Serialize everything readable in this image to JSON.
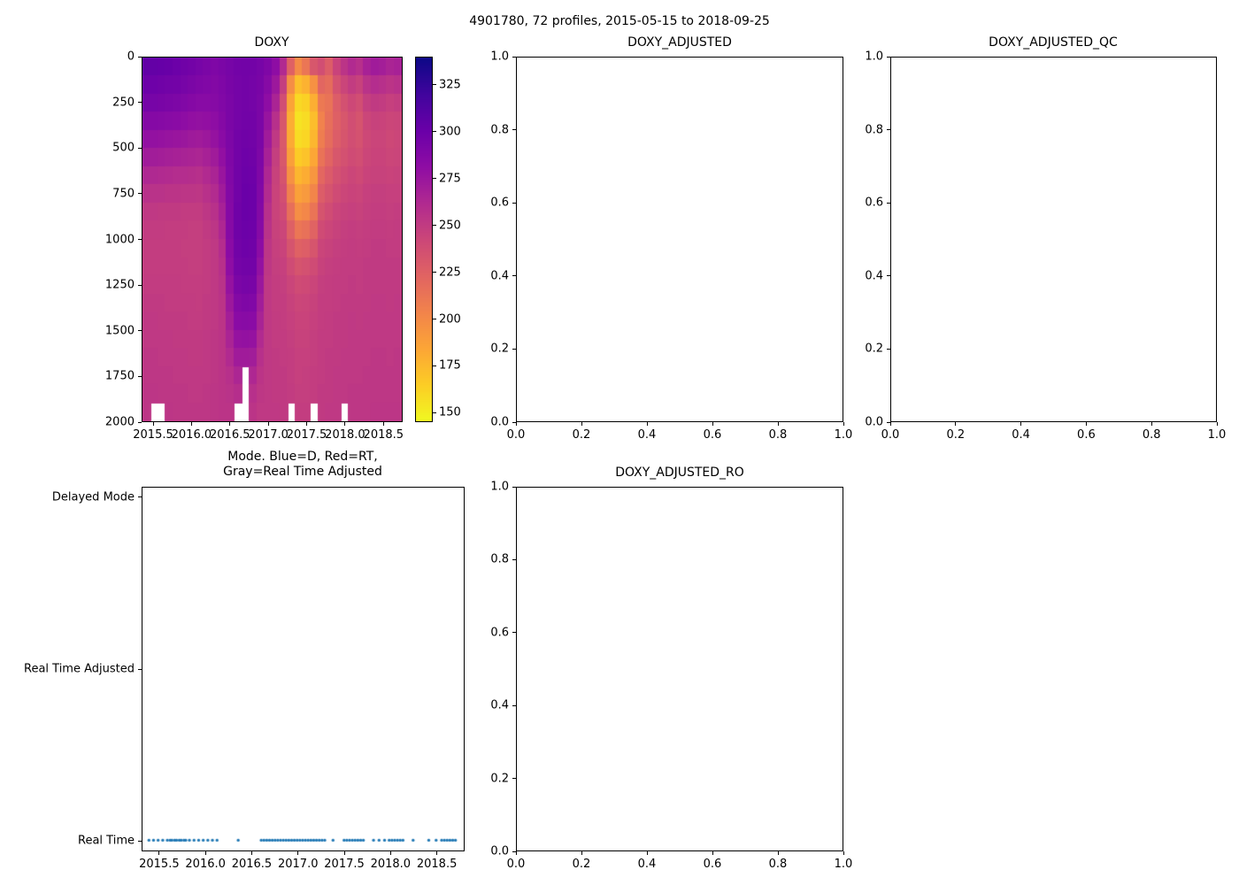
{
  "figure": {
    "suptitle": "4901780, 72 profiles, 2015-05-15 to 2018-09-25",
    "background": "#ffffff"
  },
  "chart_data": [
    {
      "id": "doxy",
      "type": "heatmap",
      "title": "DOXY",
      "x_range": [
        2015.35,
        2018.75
      ],
      "y_range_depth": [
        0,
        2000
      ],
      "x_ticks": [
        2015.5,
        2016.0,
        2016.5,
        2017.0,
        2017.5,
        2018.0,
        2018.5
      ],
      "x_tick_labels": [
        "2015.5",
        "2016.0",
        "2016.5",
        "2017.0",
        "2017.5",
        "2018.0",
        "2018.5"
      ],
      "y_ticks": [
        0,
        250,
        500,
        750,
        1000,
        1250,
        1500,
        1750,
        2000
      ],
      "y_tick_labels": [
        "0",
        "250",
        "500",
        "750",
        "1000",
        "1250",
        "1500",
        "1750",
        "2000"
      ],
      "colorbar": {
        "vmin": 145,
        "vmax": 340,
        "ticks": [
          150,
          175,
          200,
          225,
          250,
          275,
          300,
          325
        ],
        "tick_labels": [
          "150",
          "175",
          "200",
          "225",
          "250",
          "275",
          "300",
          "325"
        ],
        "colormap": "plasma_reversed",
        "stops": [
          [
            0.0,
            "#0d0887"
          ],
          [
            0.1,
            "#41049d"
          ],
          [
            0.2,
            "#6a00a8"
          ],
          [
            0.3,
            "#8f0da4"
          ],
          [
            0.4,
            "#b12a90"
          ],
          [
            0.5,
            "#cc4778"
          ],
          [
            0.6,
            "#e16462"
          ],
          [
            0.7,
            "#f2844b"
          ],
          [
            0.8,
            "#fca636"
          ],
          [
            0.9,
            "#fcce25"
          ],
          [
            1.0,
            "#f0f921"
          ]
        ]
      },
      "grid": {
        "time_start": 2015.35,
        "time_step": 0.1,
        "depth_start": 0,
        "depth_step": 100,
        "note": "values[time_column][depth_row], oxygen umol/kg, null = missing (white)",
        "values": [
          [
            305,
            300,
            295,
            288,
            280,
            272,
            264,
            257,
            252,
            250,
            249,
            249,
            250,
            251,
            252,
            252,
            253,
            253,
            254,
            254
          ],
          [
            304,
            299,
            294,
            287,
            279,
            271,
            263,
            256,
            252,
            250,
            249,
            249,
            250,
            251,
            252,
            252,
            253,
            253,
            254,
            null
          ],
          [
            303,
            298,
            293,
            286,
            278,
            270,
            262,
            256,
            251,
            250,
            249,
            249,
            250,
            251,
            251,
            252,
            252,
            253,
            253,
            null
          ],
          [
            302,
            297,
            292,
            285,
            277,
            269,
            261,
            255,
            251,
            249,
            249,
            249,
            250,
            250,
            251,
            252,
            252,
            253,
            253,
            254
          ],
          [
            300,
            296,
            291,
            284,
            276,
            268,
            260,
            255,
            251,
            249,
            249,
            249,
            250,
            250,
            251,
            251,
            252,
            252,
            253,
            253
          ],
          [
            298,
            294,
            289,
            282,
            275,
            267,
            260,
            254,
            250,
            249,
            248,
            249,
            249,
            250,
            251,
            251,
            252,
            252,
            253,
            253
          ],
          [
            296,
            292,
            287,
            280,
            273,
            266,
            259,
            254,
            250,
            248,
            248,
            248,
            249,
            250,
            250,
            251,
            251,
            252,
            252,
            253
          ],
          [
            294,
            290,
            285,
            279,
            272,
            265,
            258,
            253,
            250,
            248,
            248,
            248,
            249,
            249,
            250,
            251,
            251,
            252,
            252,
            253
          ],
          [
            292,
            289,
            285,
            280,
            274,
            268,
            262,
            257,
            253,
            251,
            250,
            250,
            250,
            251,
            251,
            252,
            252,
            252,
            253,
            253
          ],
          [
            290,
            288,
            286,
            282,
            278,
            272,
            266,
            261,
            257,
            254,
            252,
            252,
            252,
            252,
            252,
            253,
            253,
            253,
            254,
            254
          ],
          [
            292,
            290,
            289,
            287,
            284,
            280,
            276,
            272,
            268,
            264,
            260,
            258,
            256,
            255,
            255,
            255,
            255,
            255,
            255,
            255
          ],
          [
            294,
            293,
            292,
            292,
            291,
            290,
            289,
            288,
            287,
            286,
            284,
            282,
            278,
            274,
            270,
            266,
            262,
            258,
            256,
            255
          ],
          [
            296,
            295,
            295,
            295,
            296,
            296,
            297,
            297,
            298,
            298,
            297,
            295,
            292,
            288,
            284,
            278,
            272,
            265,
            259,
            null
          ],
          [
            297,
            296,
            296,
            297,
            298,
            299,
            300,
            301,
            301,
            300,
            299,
            297,
            294,
            290,
            285,
            279,
            272,
            null,
            null,
            null
          ],
          [
            296,
            295,
            295,
            296,
            297,
            298,
            299,
            300,
            300,
            299,
            298,
            296,
            293,
            289,
            284,
            278,
            271,
            264,
            258,
            255
          ],
          [
            294,
            293,
            292,
            292,
            292,
            291,
            290,
            289,
            288,
            286,
            283,
            279,
            275,
            271,
            267,
            262,
            258,
            255,
            253,
            252
          ],
          [
            290,
            286,
            282,
            277,
            272,
            268,
            264,
            261,
            258,
            256,
            254,
            253,
            252,
            252,
            252,
            252,
            252,
            252,
            252,
            252
          ],
          [
            282,
            274,
            266,
            258,
            252,
            248,
            246,
            245,
            245,
            246,
            247,
            248,
            249,
            249,
            250,
            250,
            251,
            251,
            251,
            252
          ],
          [
            262,
            248,
            238,
            232,
            230,
            231,
            234,
            237,
            240,
            243,
            245,
            247,
            248,
            249,
            249,
            250,
            250,
            251,
            251,
            251
          ],
          [
            225,
            198,
            185,
            180,
            182,
            188,
            196,
            206,
            216,
            226,
            234,
            240,
            244,
            246,
            247,
            248,
            249,
            249,
            250,
            null
          ],
          [
            200,
            172,
            160,
            155,
            158,
            166,
            176,
            187,
            198,
            212,
            225,
            234,
            240,
            243,
            245,
            246,
            247,
            247,
            248,
            249
          ],
          [
            212,
            178,
            163,
            158,
            161,
            170,
            181,
            191,
            202,
            215,
            227,
            236,
            241,
            244,
            245,
            246,
            247,
            248,
            248,
            249
          ],
          [
            232,
            196,
            180,
            173,
            176,
            184,
            193,
            203,
            213,
            224,
            233,
            240,
            244,
            246,
            247,
            248,
            248,
            249,
            249,
            null
          ],
          [
            238,
            222,
            210,
            205,
            208,
            214,
            221,
            228,
            234,
            240,
            244,
            246,
            248,
            249,
            249,
            250,
            250,
            250,
            251,
            251
          ],
          [
            228,
            218,
            214,
            216,
            218,
            223,
            229,
            234,
            239,
            243,
            246,
            248,
            249,
            249,
            250,
            250,
            251,
            251,
            251,
            252
          ],
          [
            245,
            235,
            228,
            226,
            228,
            232,
            236,
            240,
            244,
            246,
            248,
            249,
            250,
            250,
            251,
            251,
            251,
            252,
            252,
            252
          ],
          [
            255,
            244,
            236,
            232,
            233,
            236,
            240,
            243,
            246,
            248,
            249,
            250,
            250,
            251,
            251,
            251,
            252,
            252,
            252,
            null
          ],
          [
            262,
            250,
            242,
            238,
            238,
            240,
            243,
            245,
            247,
            249,
            250,
            250,
            251,
            251,
            252,
            252,
            252,
            252,
            253,
            253
          ],
          [
            258,
            246,
            238,
            234,
            235,
            238,
            241,
            244,
            246,
            248,
            249,
            250,
            250,
            251,
            251,
            252,
            252,
            252,
            253,
            253
          ],
          [
            268,
            256,
            248,
            243,
            242,
            243,
            245,
            247,
            248,
            249,
            250,
            251,
            251,
            251,
            252,
            252,
            252,
            253,
            253,
            253
          ],
          [
            272,
            260,
            251,
            246,
            244,
            245,
            246,
            248,
            249,
            250,
            251,
            251,
            251,
            252,
            252,
            252,
            253,
            253,
            253,
            254
          ],
          [
            270,
            258,
            250,
            245,
            244,
            245,
            246,
            248,
            249,
            250,
            251,
            251,
            251,
            252,
            252,
            252,
            253,
            253,
            253,
            254
          ],
          [
            266,
            255,
            247,
            243,
            242,
            243,
            245,
            247,
            248,
            249,
            250,
            251,
            251,
            251,
            252,
            252,
            252,
            253,
            253,
            254
          ],
          [
            268,
            257,
            249,
            244,
            243,
            244,
            246,
            247,
            249,
            250,
            250,
            251,
            251,
            252,
            252,
            252,
            253,
            253,
            253,
            254
          ]
        ]
      }
    },
    {
      "id": "doxy_adjusted",
      "type": "empty",
      "title": "DOXY_ADJUSTED",
      "x_range": [
        0,
        1
      ],
      "y_range": [
        0,
        1
      ],
      "x_ticks": [
        0,
        0.2,
        0.4,
        0.6,
        0.8,
        1.0
      ],
      "x_tick_labels": [
        "0.0",
        "0.2",
        "0.4",
        "0.6",
        "0.8",
        "1.0"
      ],
      "y_ticks": [
        0,
        0.2,
        0.4,
        0.6,
        0.8,
        1.0
      ],
      "y_tick_labels": [
        "0.0",
        "0.2",
        "0.4",
        "0.6",
        "0.8",
        "1.0"
      ]
    },
    {
      "id": "doxy_adjusted_qc",
      "type": "empty",
      "title": "DOXY_ADJUSTED_QC",
      "x_range": [
        0,
        1
      ],
      "y_range": [
        0,
        1
      ],
      "x_ticks": [
        0,
        0.2,
        0.4,
        0.6,
        0.8,
        1.0
      ],
      "x_tick_labels": [
        "0.0",
        "0.2",
        "0.4",
        "0.6",
        "0.8",
        "1.0"
      ],
      "y_ticks": [
        0,
        0.2,
        0.4,
        0.6,
        0.8,
        1.0
      ],
      "y_tick_labels": [
        "0.0",
        "0.2",
        "0.4",
        "0.6",
        "0.8",
        "1.0"
      ]
    },
    {
      "id": "mode",
      "type": "scatter",
      "title": "Mode. Blue=D, Red=RT,\nGray=Real Time Adjusted",
      "x_range": [
        2015.31,
        2018.8
      ],
      "x_ticks": [
        2015.5,
        2016.0,
        2016.5,
        2017.0,
        2017.5,
        2018.0,
        2018.5
      ],
      "x_tick_labels": [
        "2015.5",
        "2016.0",
        "2016.5",
        "2017.0",
        "2017.5",
        "2018.0",
        "2018.5"
      ],
      "y_categories": [
        "Real Time",
        "Real Time Adjusted",
        "Delayed Mode"
      ],
      "marker_color": "#1f77b4",
      "points": {
        "y_category": "Real Time",
        "x": [
          2015.38,
          2015.43,
          2015.48,
          2015.53,
          2015.58,
          2015.61,
          2015.63,
          2015.66,
          2015.68,
          2015.71,
          2015.73,
          2015.76,
          2015.78,
          2015.82,
          2015.87,
          2015.92,
          2015.97,
          2016.02,
          2016.07,
          2016.12,
          2016.35,
          2016.6,
          2016.63,
          2016.66,
          2016.69,
          2016.72,
          2016.75,
          2016.78,
          2016.81,
          2016.84,
          2016.87,
          2016.9,
          2016.93,
          2016.96,
          2016.99,
          2017.02,
          2017.05,
          2017.08,
          2017.11,
          2017.14,
          2017.17,
          2017.2,
          2017.23,
          2017.26,
          2017.29,
          2017.38,
          2017.5,
          2017.53,
          2017.56,
          2017.59,
          2017.62,
          2017.65,
          2017.68,
          2017.71,
          2017.82,
          2017.88,
          2017.94,
          2017.99,
          2018.02,
          2018.05,
          2018.08,
          2018.11,
          2018.14,
          2018.25,
          2018.42,
          2018.5,
          2018.56,
          2018.59,
          2018.62,
          2018.65,
          2018.68,
          2018.71
        ]
      }
    },
    {
      "id": "doxy_adjusted_ro",
      "type": "empty",
      "title": "DOXY_ADJUSTED_RO",
      "x_range": [
        0,
        1
      ],
      "y_range": [
        0,
        1
      ],
      "x_ticks": [
        0,
        0.2,
        0.4,
        0.6,
        0.8,
        1.0
      ],
      "x_tick_labels": [
        "0.0",
        "0.2",
        "0.4",
        "0.6",
        "0.8",
        "1.0"
      ],
      "y_ticks": [
        0,
        0.2,
        0.4,
        0.6,
        0.8,
        1.0
      ],
      "y_tick_labels": [
        "0.0",
        "0.2",
        "0.4",
        "0.6",
        "0.8",
        "1.0"
      ]
    }
  ]
}
